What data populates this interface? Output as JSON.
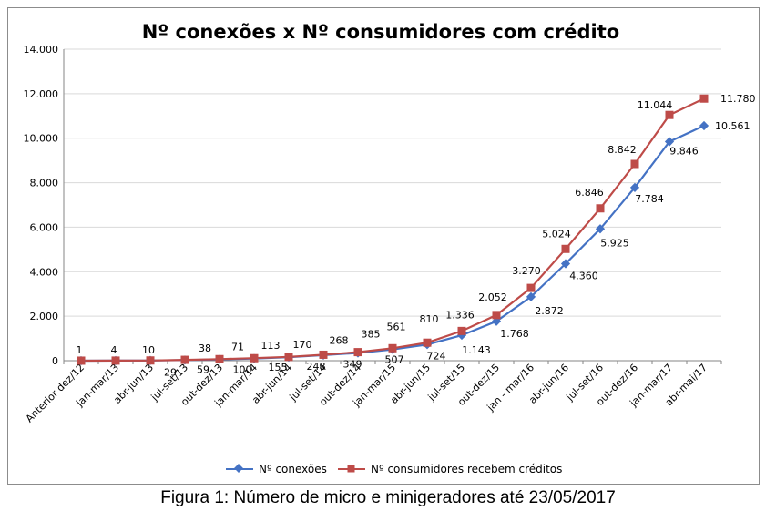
{
  "chart_data": {
    "type": "line",
    "title": "Nº conexões x Nº consumidores com crédito",
    "ylim": [
      0,
      14000
    ],
    "yticks": [
      "0",
      "2.000",
      "4.000",
      "6.000",
      "8.000",
      "10.000",
      "12.000",
      "14.000"
    ],
    "ytick_values": [
      0,
      2000,
      4000,
      6000,
      8000,
      10000,
      12000,
      14000
    ],
    "grid": true,
    "legend": "bottom",
    "categories": [
      "Anterior dez/12",
      "jan-mar/13",
      "abr-jun/13",
      "jul-set/13",
      "out-dez/13",
      "jan-mar/14",
      "abr-jun/14",
      "jul-set/14",
      "out-dez/14",
      "jan-mar/15",
      "abr-jun/15",
      "jul-set/15",
      "out-dez/15",
      "jan - mar/16",
      "abr-jun/16",
      "jul-set/16",
      "out-dez/16",
      "jan-mar/17",
      "abr-mai/17"
    ],
    "series": [
      {
        "name": "Nº conexões",
        "color": "#4472c4",
        "marker": "diamond",
        "values": [
          1,
          4,
          10,
          29,
          59,
          100,
          155,
          248,
          349,
          507,
          724,
          1143,
          1768,
          2872,
          4360,
          5925,
          7784,
          9846,
          10561
        ],
        "labels": [
          "",
          "",
          "",
          "29",
          "59",
          "100",
          "155",
          "248",
          "349",
          "507",
          "724",
          "1.143",
          "1.768",
          "2.872",
          "4.360",
          "5.925",
          "7.784",
          "9.846",
          "10.561"
        ]
      },
      {
        "name": "Nº consumidores recebem créditos",
        "color": "#be4b48",
        "marker": "square",
        "values": [
          1,
          4,
          10,
          38,
          71,
          113,
          170,
          268,
          385,
          561,
          810,
          1336,
          2052,
          3270,
          5024,
          6846,
          8842,
          11044,
          11780
        ],
        "labels": [
          "1",
          "4",
          "10",
          "38",
          "71",
          "113",
          "170",
          "268",
          "385",
          "561",
          "810",
          "1.336",
          "2.052",
          "3.270",
          "5.024",
          "6.846",
          "8.842",
          "11.044",
          "11.780"
        ]
      }
    ]
  },
  "caption": "Figura 1: Número de micro e minigeradores até 23/05/2017"
}
